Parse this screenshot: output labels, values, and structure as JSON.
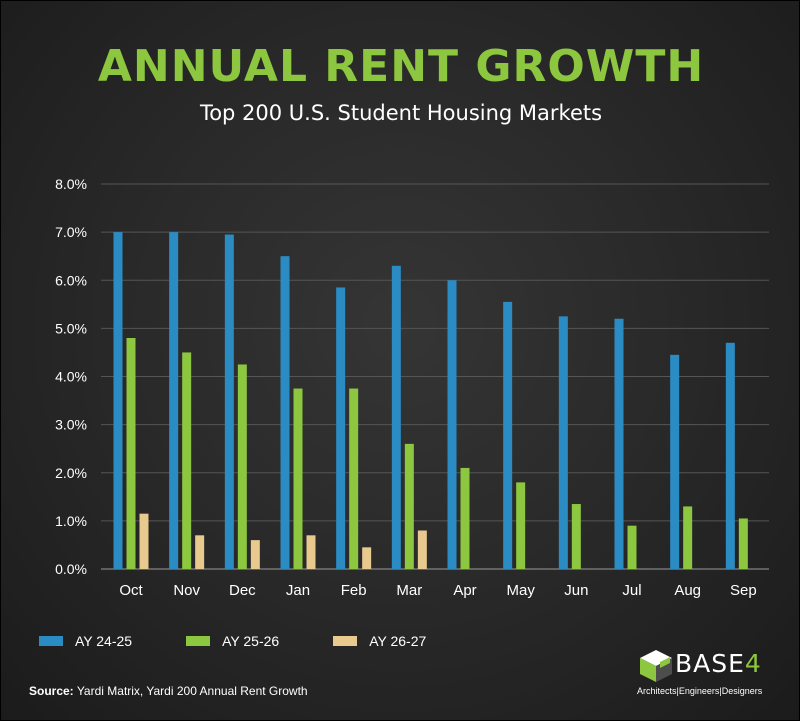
{
  "header": {
    "title": "ANNUAL RENT GROWTH",
    "subtitle": "Top 200 U.S. Student Housing Markets"
  },
  "source": {
    "label": "Source:",
    "text": "Yardi Matrix, Yardi 200 Annual Rent Growth"
  },
  "logo": {
    "name": "BASE",
    "number": "4",
    "tagline": "Architects|Engineers|Designers"
  },
  "colors": {
    "title": "#8dc63f",
    "series": [
      "#2b8cc4",
      "#8dc63f",
      "#e8c98e"
    ]
  },
  "chart_data": {
    "type": "bar",
    "title": "ANNUAL RENT GROWTH",
    "subtitle": "Top 200 U.S. Student Housing Markets",
    "categories": [
      "Oct",
      "Nov",
      "Dec",
      "Jan",
      "Feb",
      "Mar",
      "Apr",
      "May",
      "Jun",
      "Jul",
      "Aug",
      "Sep"
    ],
    "series": [
      {
        "name": "AY 24-25",
        "color": "#2b8cc4",
        "values": [
          7.0,
          7.0,
          6.95,
          6.5,
          5.85,
          6.3,
          6.0,
          5.55,
          5.25,
          5.2,
          4.45,
          4.7
        ]
      },
      {
        "name": "AY 25-26",
        "color": "#8dc63f",
        "values": [
          4.8,
          4.5,
          4.25,
          3.75,
          3.75,
          2.6,
          2.1,
          1.8,
          1.35,
          0.9,
          1.3,
          1.05
        ]
      },
      {
        "name": "AY 26-27",
        "color": "#e8c98e",
        "values": [
          1.15,
          0.7,
          0.6,
          0.7,
          0.45,
          0.8,
          null,
          null,
          null,
          null,
          null,
          null
        ]
      }
    ],
    "ylim": [
      0,
      8
    ],
    "yticks": [
      "0.0%",
      "1.0%",
      "2.0%",
      "3.0%",
      "4.0%",
      "5.0%",
      "6.0%",
      "7.0%",
      "8.0%"
    ],
    "grid": true,
    "legend_position": "bottom-left"
  }
}
